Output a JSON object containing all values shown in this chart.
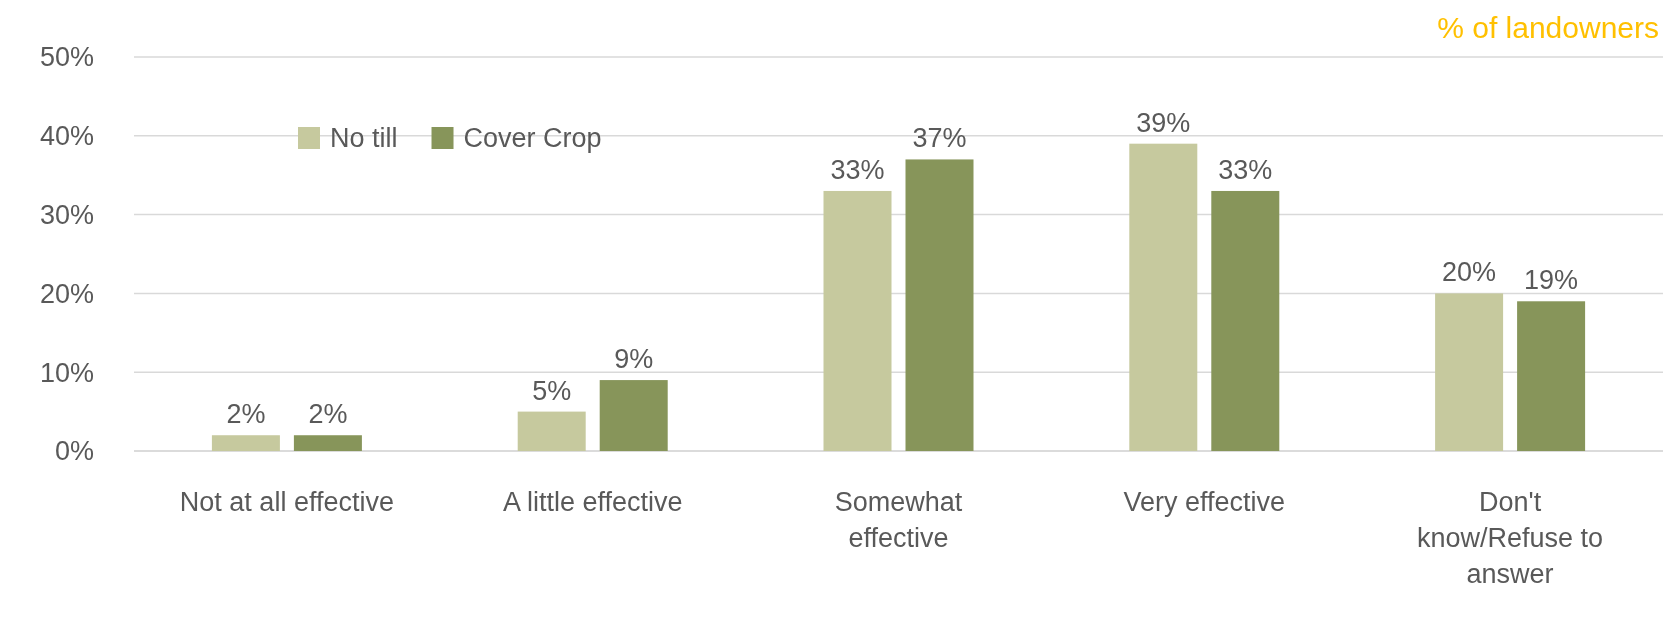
{
  "chart_data": {
    "type": "bar",
    "categories": [
      "Not at all effective",
      "A little effective",
      "Somewhat effective",
      "Very effective",
      "Don't know/Refuse to answer"
    ],
    "series": [
      {
        "name": "No till",
        "color": "#c6c99e",
        "values": [
          2,
          5,
          33,
          39,
          20
        ],
        "value_labels": [
          "2%",
          "5%",
          "33%",
          "39%",
          "20%"
        ]
      },
      {
        "name": "Cover Crop",
        "color": "#87955a",
        "values": [
          2,
          9,
          37,
          33,
          19
        ],
        "value_labels": [
          "2%",
          "9%",
          "37%",
          "33%",
          "19%"
        ]
      }
    ],
    "ylim": [
      0,
      50
    ],
    "yticks": [
      {
        "value": 0,
        "label": "0%"
      },
      {
        "value": 10,
        "label": "10%"
      },
      {
        "value": 20,
        "label": "20%"
      },
      {
        "value": 30,
        "label": "30%"
      },
      {
        "value": 40,
        "label": "40%"
      },
      {
        "value": 50,
        "label": "50%"
      }
    ],
    "grid": "y",
    "legend": "top left",
    "annotations": [
      "% of landowners"
    ]
  }
}
